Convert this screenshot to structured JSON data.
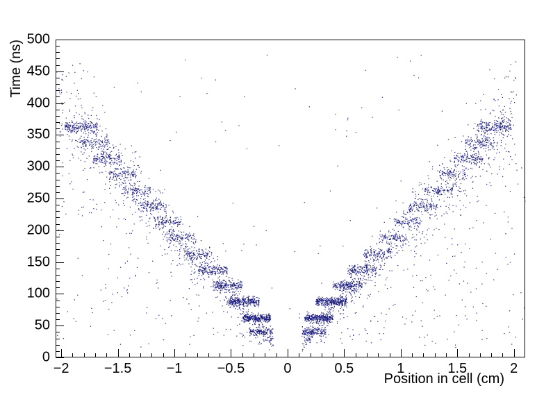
{
  "chart_data": {
    "type": "scatter",
    "title": "",
    "xlabel": "Position in cell (cm)",
    "ylabel": "Time (ns)",
    "xlim": [
      -2.05,
      2.1
    ],
    "ylim": [
      0,
      500
    ],
    "x_ticks": [
      -2,
      -1.5,
      -1,
      -0.5,
      0,
      0.5,
      1,
      1.5,
      2
    ],
    "x_tick_labels": [
      "−2",
      "−1.5",
      "−1",
      "−0.5",
      "0",
      "0.5",
      "1",
      "1.5",
      "2"
    ],
    "x_minor_step": 0.1,
    "y_ticks": [
      0,
      50,
      100,
      150,
      200,
      250,
      300,
      350,
      400,
      450,
      500
    ],
    "y_tick_labels": [
      "0",
      "50",
      "100",
      "150",
      "200",
      "250",
      "300",
      "350",
      "400",
      "450",
      "500"
    ],
    "y_minor_step": 10,
    "marker_color": "#14147a",
    "axis_color": "#000000",
    "background": "#ffffff",
    "summary": "V-shaped drift-time vs position scatter: time rises ~195 ns per cm of |position|, grouped into ~25 ns horizontal bands (staircase); densest clusters near (±0.3 cm, 60–90 ns) and (±1.8 cm, 360 ns); sparse scatter inside the V and a few outliers elsewhere.",
    "pattern": {
      "seed": 20240613,
      "slope_ns_per_cm": 195,
      "bands": [
        {
          "t": 40,
          "x0": 0.13,
          "x1": 0.34,
          "n": 130,
          "tj": 3
        },
        {
          "t": 62,
          "x0": 0.15,
          "x1": 0.4,
          "n": 280,
          "tj": 3
        },
        {
          "t": 88,
          "x0": 0.25,
          "x1": 0.52,
          "n": 280,
          "tj": 3.5
        },
        {
          "t": 113,
          "x0": 0.4,
          "x1": 0.66,
          "n": 170,
          "tj": 4
        },
        {
          "t": 138,
          "x0": 0.53,
          "x1": 0.79,
          "n": 140,
          "tj": 4
        },
        {
          "t": 163,
          "x0": 0.67,
          "x1": 0.92,
          "n": 95,
          "tj": 4
        },
        {
          "t": 188,
          "x0": 0.81,
          "x1": 1.05,
          "n": 85,
          "tj": 4
        },
        {
          "t": 213,
          "x0": 0.94,
          "x1": 1.18,
          "n": 85,
          "tj": 4
        },
        {
          "t": 238,
          "x0": 1.07,
          "x1": 1.32,
          "n": 95,
          "tj": 4
        },
        {
          "t": 262,
          "x0": 1.21,
          "x1": 1.46,
          "n": 85,
          "tj": 4
        },
        {
          "t": 288,
          "x0": 1.34,
          "x1": 1.58,
          "n": 85,
          "tj": 4.5
        },
        {
          "t": 313,
          "x0": 1.47,
          "x1": 1.72,
          "n": 115,
          "tj": 5
        },
        {
          "t": 337,
          "x0": 1.57,
          "x1": 1.83,
          "n": 105,
          "tj": 5
        },
        {
          "t": 362,
          "x0": 1.67,
          "x1": 1.97,
          "n": 190,
          "tj": 5
        }
      ],
      "arm_cloud": {
        "n_per_side": 820,
        "x_min": 0.12,
        "x_max": 2.03,
        "t_sigma_frac": 0.11,
        "t_sigma_min": 8
      },
      "inner_fill": {
        "n": 430,
        "t_min": 18
      },
      "outliers": {
        "n": 110,
        "t_min": 8,
        "t_max": 480
      }
    }
  }
}
